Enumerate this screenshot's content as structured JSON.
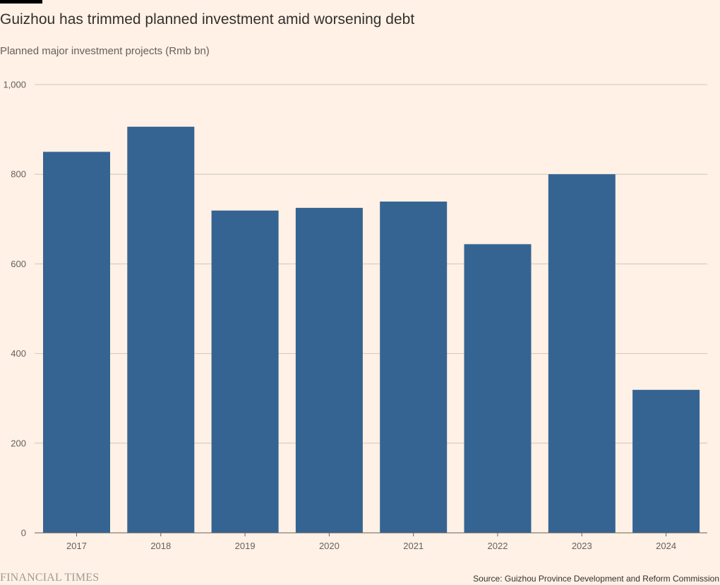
{
  "title": "Guizhou has trimmed planned investment amid worsening debt",
  "subtitle": "Planned major investment projects (Rmb bn)",
  "source": "Source: Guizhou Province Development and Reform Commission",
  "brand": "FINANCIAL TIMES",
  "colors": {
    "bar": "#356493",
    "gridline": "#cec6be",
    "background": "#fff1e5"
  },
  "chart_data": {
    "type": "bar",
    "categories": [
      "2017",
      "2018",
      "2019",
      "2020",
      "2021",
      "2022",
      "2023",
      "2024"
    ],
    "values": [
      850,
      906,
      719,
      725,
      739,
      644,
      800,
      319
    ],
    "ylim": [
      0,
      1000
    ],
    "yticks": [
      0,
      200,
      400,
      600,
      800,
      1000
    ],
    "ytick_labels": [
      "0",
      "200",
      "400",
      "600",
      "800",
      "1,000"
    ],
    "grid": true,
    "legend": "none"
  }
}
